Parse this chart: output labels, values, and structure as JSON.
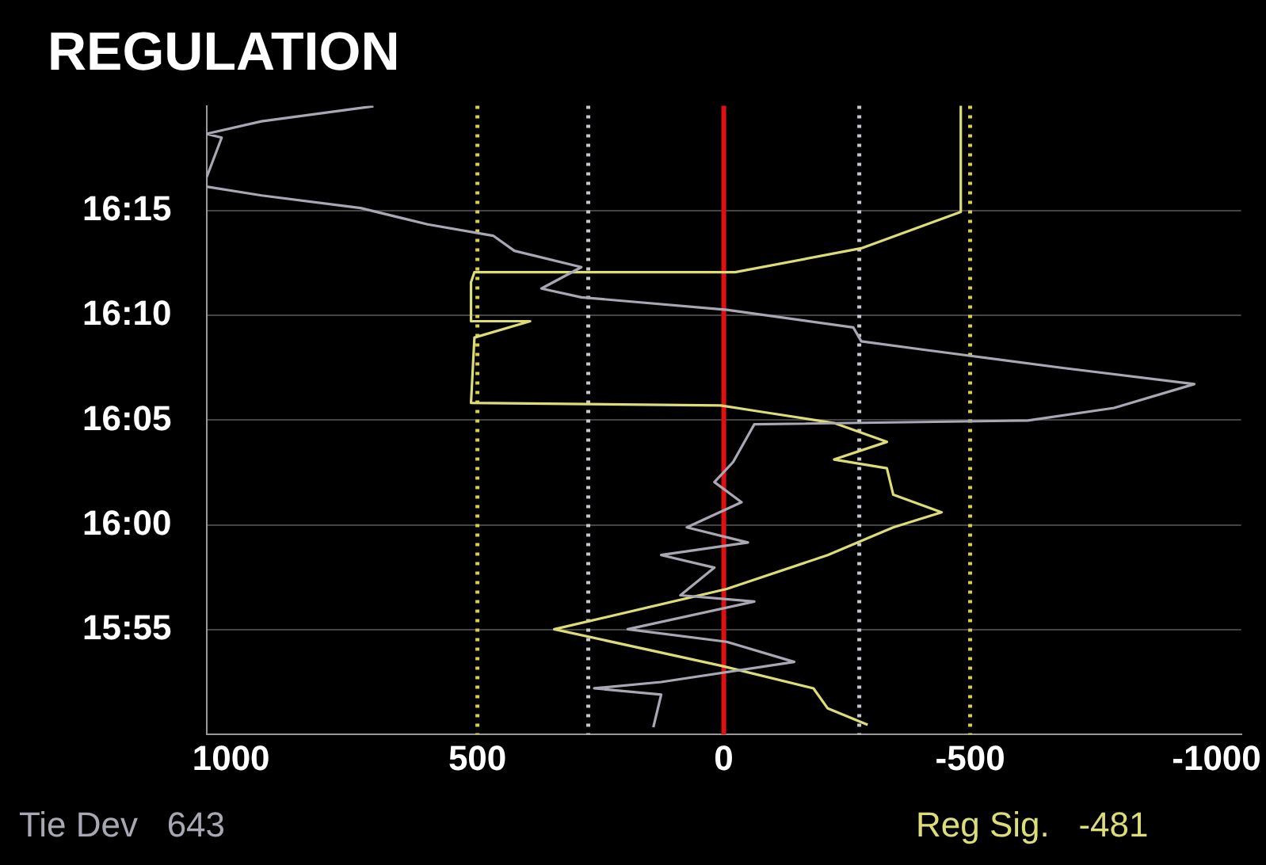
{
  "chart_data": {
    "type": "line",
    "title": "REGULATION",
    "annotations": [
      "Tie Dev   643",
      "Reg Sig.   -481"
    ],
    "xlim": [
      1050,
      -1050
    ],
    "xticks": [
      1000,
      500,
      0,
      -500,
      -1000
    ],
    "ylim": [
      15.8333,
      16.3333
    ],
    "yticks": [
      {
        "value": 15.9167,
        "label": "15:55"
      },
      {
        "value": 16.0,
        "label": "16:00"
      },
      {
        "value": 16.0833,
        "label": "16:05"
      },
      {
        "value": 16.1667,
        "label": "16:10"
      },
      {
        "value": 16.25,
        "label": "16:15"
      }
    ],
    "grid": "y",
    "legend": false,
    "marker": "none",
    "line_style": "solid",
    "ref_lines": [
      {
        "axis": "x",
        "value": 500,
        "label": null,
        "color": "#d8d040",
        "line_style": "dotted"
      },
      {
        "axis": "x",
        "value": 275,
        "label": null,
        "color": "#c8c8d0",
        "line_style": "dotted"
      },
      {
        "axis": "x",
        "value": -275,
        "label": null,
        "color": "#c8c8d0",
        "line_style": "dotted"
      },
      {
        "axis": "x",
        "value": -500,
        "label": null,
        "color": "#d8d040",
        "line_style": "dotted"
      },
      {
        "axis": "x",
        "value": 0,
        "label": null,
        "color": "#e01010",
        "line_style": "solid"
      }
    ],
    "series": [
      {
        "color": "#a8a8b4",
        "x": [
          711,
          938,
          1050,
          1019,
          1050,
          1050,
          938,
          737,
          601,
          468,
          425,
          289,
          370,
          289,
          -6,
          -263,
          -279,
          -412,
          -685,
          -955,
          -792,
          -617,
          -62,
          -49,
          -19,
          19,
          -36,
          75,
          -49,
          127,
          19,
          88,
          -62,
          195,
          -6,
          -143,
          127,
          263,
          127,
          143
        ],
        "values": [
          16.333,
          16.321,
          16.311,
          16.308,
          16.276,
          16.269,
          16.262,
          16.252,
          16.239,
          16.23,
          16.218,
          16.205,
          16.188,
          16.181,
          16.171,
          16.157,
          16.146,
          16.139,
          16.125,
          16.112,
          16.093,
          16.083,
          16.08,
          16.071,
          16.05,
          16.034,
          16.018,
          15.998,
          15.986,
          15.976,
          15.966,
          15.944,
          15.939,
          15.917,
          15.907,
          15.891,
          15.875,
          15.87,
          15.865,
          15.839
        ]
      },
      {
        "color": "#dcdc78",
        "x": [
          -481,
          -481,
          -279,
          -23,
          506,
          513,
          513,
          393,
          506,
          513,
          6,
          -75,
          -224,
          -331,
          -224,
          -331,
          -344,
          -442,
          -344,
          -211,
          -6,
          344,
          6,
          -182,
          -211,
          -292
        ],
        "values": [
          16.333,
          16.249,
          16.22,
          16.201,
          16.201,
          16.193,
          16.162,
          16.162,
          16.149,
          16.097,
          16.095,
          16.09,
          16.081,
          16.066,
          16.052,
          16.045,
          16.024,
          16.01,
          15.998,
          15.976,
          15.949,
          15.917,
          15.888,
          15.87,
          15.854,
          15.841
        ]
      }
    ]
  }
}
